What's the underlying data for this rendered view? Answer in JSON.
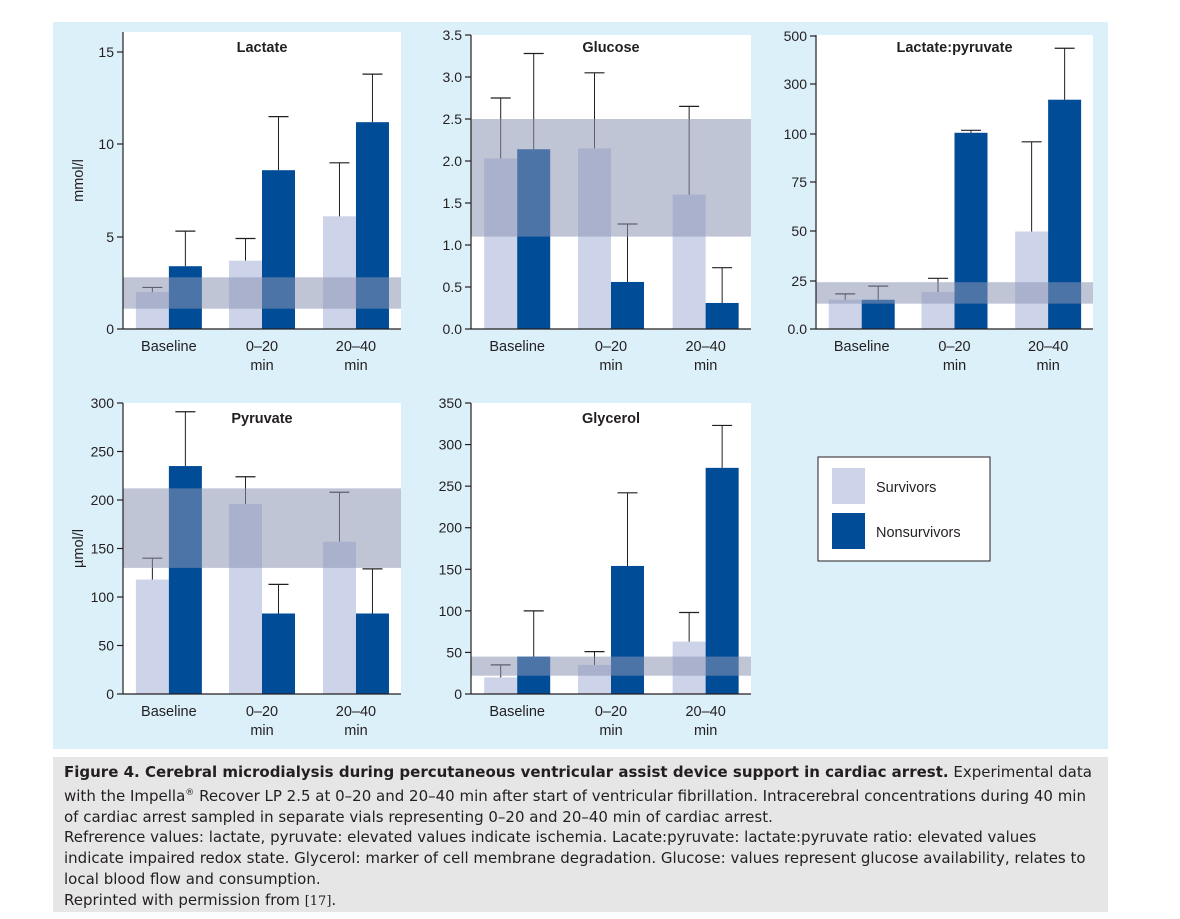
{
  "colors": {
    "survivors": "#cdd3e8",
    "nonsurvivors": "#004c97",
    "reference_band": "#8c96b4",
    "panel_bg": "#dcf0fa",
    "plot_bg": "#ffffff"
  },
  "chart_data": [
    {
      "type": "bar",
      "title": "Lactate",
      "ylabel": "mmol/l",
      "categories": [
        [
          "Baseline"
        ],
        [
          "0–20",
          "min"
        ],
        [
          "20–40",
          "min"
        ]
      ],
      "ylim": [
        0,
        15.5
      ],
      "yticks": [
        0,
        5,
        10,
        15
      ],
      "ytick_labels": [
        "0",
        "5",
        "10",
        "15"
      ],
      "reference_range": [
        1.1,
        2.8
      ],
      "series": [
        {
          "name": "Survivors",
          "values": [
            2.0,
            3.7,
            6.1
          ],
          "error": [
            2.25,
            4.9,
            9.0
          ]
        },
        {
          "name": "Nonsurvivors",
          "values": [
            3.4,
            8.6,
            11.2
          ],
          "error": [
            5.3,
            11.5,
            13.8
          ]
        }
      ]
    },
    {
      "type": "bar",
      "title": "Glucose",
      "ylabel": "",
      "categories": [
        [
          "Baseline"
        ],
        [
          "0–20",
          "min"
        ],
        [
          "20–40",
          "min"
        ]
      ],
      "ylim": [
        0,
        3.5
      ],
      "yticks": [
        0,
        0.5,
        1.0,
        1.5,
        2.0,
        2.5,
        3.0,
        3.5
      ],
      "ytick_labels": [
        "0.0",
        "0.5",
        "1.0",
        "1.5",
        "2.0",
        "2.5",
        "3.0",
        "3.5"
      ],
      "reference_range": [
        1.1,
        2.5
      ],
      "series": [
        {
          "name": "Survivors",
          "values": [
            2.03,
            2.15,
            1.6
          ],
          "error": [
            2.75,
            3.05,
            2.65
          ]
        },
        {
          "name": "Nonsurvivors",
          "values": [
            2.14,
            0.56,
            0.31
          ],
          "error": [
            3.28,
            1.25,
            0.73
          ]
        }
      ]
    },
    {
      "type": "bar",
      "title": "Lactate:pyruvate",
      "ylabel": "",
      "categories": [
        [
          "Baseline"
        ],
        [
          "0–20",
          "min"
        ],
        [
          "20–40",
          "min"
        ]
      ],
      "yaxis_note": "broken axis: 0–100 linear, then 100–500 compressed",
      "yticks": [
        0,
        25,
        50,
        75,
        100,
        300,
        500
      ],
      "ytick_labels": [
        "0.0",
        "25",
        "50",
        "75",
        "100",
        "300",
        "500"
      ],
      "reference_range": [
        13,
        24
      ],
      "series": [
        {
          "name": "Survivors",
          "values": [
            15,
            19,
            50
          ],
          "error": [
            18,
            26,
            96
          ]
        },
        {
          "name": "Nonsurvivors",
          "values": [
            15,
            105,
            240
          ],
          "error": [
            22,
            115,
            450
          ]
        }
      ]
    },
    {
      "type": "bar",
      "title": "Pyruvate",
      "ylabel": "µmol/l",
      "categories": [
        [
          "Baseline"
        ],
        [
          "0–20",
          "min"
        ],
        [
          "20–40",
          "min"
        ]
      ],
      "ylim": [
        0,
        300
      ],
      "yticks": [
        0,
        50,
        100,
        150,
        200,
        250,
        300
      ],
      "ytick_labels": [
        "0",
        "50",
        "100",
        "150",
        "200",
        "250",
        "300"
      ],
      "reference_range": [
        130,
        212
      ],
      "series": [
        {
          "name": "Survivors",
          "values": [
            118,
            196,
            157
          ],
          "error": [
            140,
            224,
            208
          ]
        },
        {
          "name": "Nonsurvivors",
          "values": [
            235,
            83,
            83
          ],
          "error": [
            291,
            113,
            129
          ]
        }
      ]
    },
    {
      "type": "bar",
      "title": "Glycerol",
      "ylabel": "",
      "categories": [
        [
          "Baseline"
        ],
        [
          "0–20",
          "min"
        ],
        [
          "20–40",
          "min"
        ]
      ],
      "ylim": [
        0,
        350
      ],
      "yticks": [
        0,
        50,
        100,
        150,
        200,
        250,
        300,
        350
      ],
      "ytick_labels": [
        "0",
        "50",
        "100",
        "150",
        "200",
        "250",
        "300",
        "350"
      ],
      "reference_range": [
        22,
        45
      ],
      "series": [
        {
          "name": "Survivors",
          "values": [
            20,
            35,
            63
          ],
          "error": [
            35,
            51,
            98
          ]
        },
        {
          "name": "Nonsurvivors",
          "values": [
            45,
            154,
            272
          ],
          "error": [
            100,
            242,
            323
          ]
        }
      ]
    }
  ],
  "legend": [
    {
      "label": "Survivors",
      "series": "survivors"
    },
    {
      "label": "Nonsurvivors",
      "series": "nonsurvivors"
    }
  ],
  "caption": {
    "title": "Figure 4. Cerebral microdialysis during percutaneous ventricular assist device support in cardiac arrest.",
    "line1_part1": " Experimental data with the Impella",
    "registered": "®",
    "line1_part2": " Recover LP 2.5 at 0–20 and 20–40 min after start of ventricular fibrillation. Intracerebral concentrations during 40 min of cardiac arrest sampled in separate vials representing 0–20 and 20–40 min of cardiac arrest.",
    "paragraph2": "Refrerence values: lactate, pyruvate: elevated values indicate ischemia. Lacate:pyruvate: lactate:pyruvate ratio: elevated values indicate impaired redox state. Glycerol: marker of cell membrane degradation. Glucose: values represent glucose availability, relates to local blood flow and consumption.",
    "reprinted": "Reprinted with permission from ",
    "citation": "[17]",
    "period": "."
  }
}
